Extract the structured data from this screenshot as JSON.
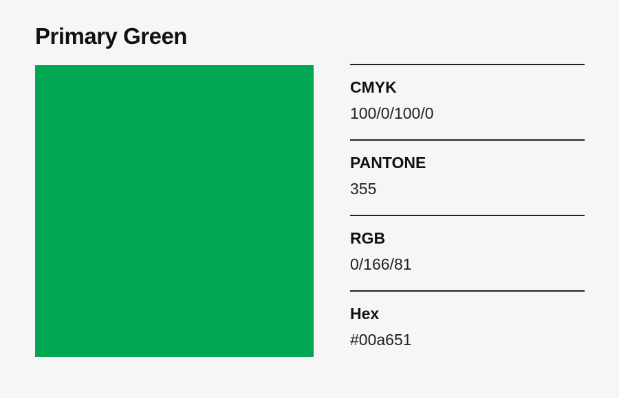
{
  "title": "Primary Green",
  "swatch_color": "#00a651",
  "specs": [
    {
      "label": "CMYK",
      "value": "100/0/100/0"
    },
    {
      "label": "PANTONE",
      "value": "355"
    },
    {
      "label": "RGB",
      "value": "0/166/81"
    },
    {
      "label": "Hex",
      "value": "#00a651"
    }
  ]
}
